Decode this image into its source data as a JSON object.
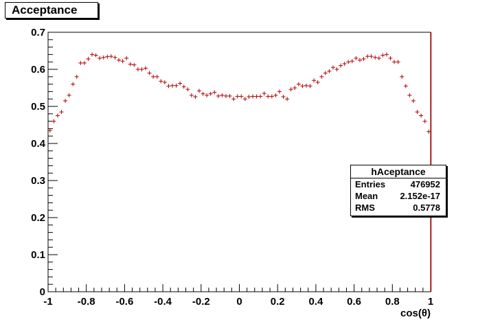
{
  "title": "Acceptance",
  "stats": {
    "name": "hAceptance",
    "rows": [
      {
        "label": "Entries",
        "value": "476952"
      },
      {
        "label": "Mean",
        "value": "2.152e-17"
      },
      {
        "label": "RMS",
        "value": "0.5778"
      }
    ]
  },
  "chart_data": {
    "type": "scatter",
    "title": "Acceptance",
    "xlabel": "cos(θ)",
    "ylabel": "",
    "xlim": [
      -1,
      1
    ],
    "ylim": [
      0,
      0.7
    ],
    "x_ticks": [
      "-1",
      "-0.8",
      "-0.6",
      "-0.4",
      "-0.2",
      "0",
      "0.2",
      "0.4",
      "0.6",
      "0.8",
      "1"
    ],
    "y_ticks": [
      "0",
      "0.1",
      "0.2",
      "0.3",
      "0.4",
      "0.5",
      "0.6",
      "0.7"
    ],
    "marker_color": "#b00000",
    "series": [
      {
        "x": [
          -0.99,
          -0.97,
          -0.95,
          -0.93,
          -0.91,
          -0.89,
          -0.87,
          -0.85,
          -0.83,
          -0.81,
          -0.79,
          -0.77,
          -0.75,
          -0.73,
          -0.71,
          -0.69,
          -0.67,
          -0.65,
          -0.63,
          -0.61,
          -0.59,
          -0.57,
          -0.55,
          -0.53,
          -0.51,
          -0.49,
          -0.47,
          -0.45,
          -0.43,
          -0.41,
          -0.39,
          -0.37,
          -0.35,
          -0.33,
          -0.31,
          -0.29,
          -0.27,
          -0.25,
          -0.23,
          -0.21,
          -0.19,
          -0.17,
          -0.15,
          -0.13,
          -0.11,
          -0.09,
          -0.07,
          -0.05,
          -0.03,
          -0.01,
          0.01,
          0.03,
          0.05,
          0.07,
          0.09,
          0.11,
          0.13,
          0.15,
          0.17,
          0.19,
          0.21,
          0.23,
          0.25,
          0.27,
          0.29,
          0.31,
          0.33,
          0.35,
          0.37,
          0.39,
          0.41,
          0.43,
          0.45,
          0.47,
          0.49,
          0.51,
          0.53,
          0.55,
          0.57,
          0.59,
          0.61,
          0.63,
          0.65,
          0.67,
          0.69,
          0.71,
          0.73,
          0.75,
          0.77,
          0.79,
          0.81,
          0.83,
          0.85,
          0.87,
          0.89,
          0.91,
          0.93,
          0.95,
          0.97,
          0.99
        ],
        "y": [
          0.435,
          0.46,
          0.475,
          0.485,
          0.515,
          0.53,
          0.56,
          0.58,
          0.617,
          0.617,
          0.628,
          0.64,
          0.638,
          0.63,
          0.632,
          0.634,
          0.635,
          0.632,
          0.625,
          0.622,
          0.63,
          0.614,
          0.612,
          0.6,
          0.6,
          0.603,
          0.59,
          0.58,
          0.58,
          0.568,
          0.565,
          0.555,
          0.556,
          0.556,
          0.562,
          0.553,
          0.546,
          0.53,
          0.526,
          0.542,
          0.534,
          0.53,
          0.534,
          0.538,
          0.528,
          0.53,
          0.528,
          0.528,
          0.52,
          0.527,
          0.527,
          0.52,
          0.526,
          0.527,
          0.527,
          0.527,
          0.535,
          0.527,
          0.527,
          0.53,
          0.54,
          0.526,
          0.52,
          0.546,
          0.55,
          0.56,
          0.555,
          0.556,
          0.555,
          0.57,
          0.565,
          0.58,
          0.59,
          0.595,
          0.605,
          0.6,
          0.61,
          0.615,
          0.62,
          0.622,
          0.63,
          0.625,
          0.628,
          0.635,
          0.635,
          0.632,
          0.63,
          0.638,
          0.64,
          0.63,
          0.62,
          0.62,
          0.58,
          0.555,
          0.53,
          0.515,
          0.485,
          0.475,
          0.46,
          0.432
        ]
      }
    ]
  }
}
